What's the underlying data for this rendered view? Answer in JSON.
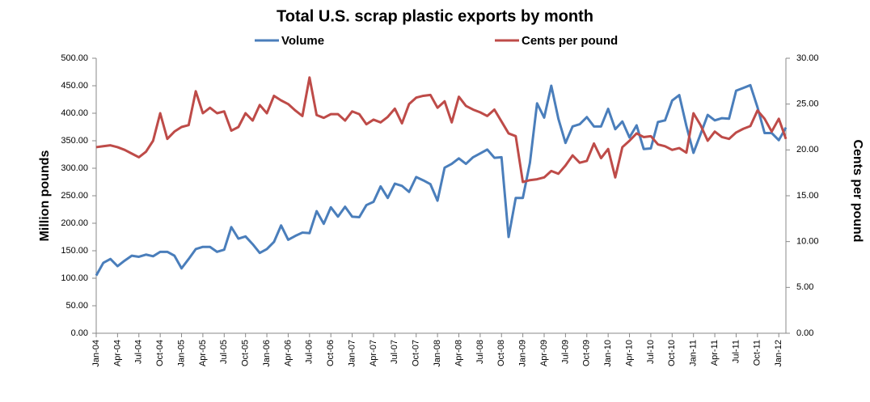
{
  "chart_data": {
    "type": "line",
    "title": "Total U.S. scrap plastic exports by month",
    "y_label": "Million pounds",
    "y2_label": "Cents per pound",
    "categories": [
      "Jan-04",
      null,
      null,
      "Apr-04",
      null,
      null,
      "Jul-04",
      null,
      null,
      "Oct-04",
      null,
      null,
      "Jan-05",
      null,
      null,
      "Apr-05",
      null,
      null,
      "Jul-05",
      null,
      null,
      "Oct-05",
      null,
      null,
      "Jan-06",
      null,
      null,
      "Apr-06",
      null,
      null,
      "Jul-06",
      null,
      null,
      "Oct-06",
      null,
      null,
      "Jan-07",
      null,
      null,
      "Apr-07",
      null,
      null,
      "Jul-07",
      null,
      null,
      "Oct-07",
      null,
      null,
      "Jan-08",
      null,
      null,
      "Apr-08",
      null,
      null,
      "Jul-08",
      null,
      null,
      "Oct-08",
      null,
      null,
      "Jan-09",
      null,
      null,
      "Apr-09",
      null,
      null,
      "Jul-09",
      null,
      null,
      "Oct-09",
      null,
      null,
      "Jan-10",
      null,
      null,
      "Apr-10",
      null,
      null,
      "Jul-10",
      null,
      null,
      "Oct-10",
      null,
      null,
      "Jan-11",
      null,
      null,
      "Apr-11",
      null,
      null,
      "Jul-11",
      null,
      null,
      "Oct-11",
      null,
      null,
      "Jan-12",
      null
    ],
    "series": [
      {
        "name": "Volume",
        "color": "#4a7ebb",
        "values": [
          105,
          128,
          135,
          122,
          132,
          141,
          139,
          143,
          140,
          148,
          148,
          141,
          118,
          135,
          153,
          157,
          157,
          148,
          152,
          193,
          172,
          176,
          162,
          146,
          153,
          166,
          196,
          170,
          177,
          183,
          182,
          222,
          199,
          229,
          212,
          230,
          212,
          211,
          233,
          239,
          267,
          246,
          272,
          268,
          257,
          284,
          278,
          271,
          241,
          301,
          308,
          318,
          308,
          320,
          327,
          334,
          319,
          320,
          175,
          246,
          246,
          310,
          418,
          392,
          450,
          390,
          346,
          376,
          380,
          393,
          376,
          376,
          408,
          371,
          385,
          356,
          378,
          335,
          336,
          384,
          387,
          423,
          433,
          377,
          328,
          362,
          397,
          387,
          391,
          390,
          441,
          446,
          451,
          411,
          364,
          364,
          351,
          374
        ]
      },
      {
        "name": "Cents per pound",
        "color": "#be4b48",
        "axis": "y2",
        "values": [
          20.3,
          20.4,
          20.5,
          20.3,
          20.0,
          19.6,
          19.2,
          19.8,
          21.0,
          24.0,
          21.2,
          22.0,
          22.5,
          22.7,
          26.4,
          24.0,
          24.6,
          24.0,
          24.2,
          22.1,
          22.5,
          24.0,
          23.2,
          24.9,
          24.0,
          25.9,
          25.4,
          25.0,
          24.3,
          23.7,
          27.9,
          23.8,
          23.5,
          23.9,
          23.9,
          23.2,
          24.2,
          23.9,
          22.8,
          23.3,
          23.0,
          23.6,
          24.5,
          22.9,
          25.0,
          25.7,
          25.9,
          26.0,
          24.6,
          25.3,
          23.0,
          25.8,
          24.8,
          24.4,
          24.1,
          23.7,
          24.4,
          23.1,
          21.8,
          21.5,
          16.5,
          16.7,
          16.8,
          17.0,
          17.7,
          17.4,
          18.3,
          19.4,
          18.6,
          18.8,
          20.7,
          19.1,
          20.1,
          17.0,
          20.3,
          21.0,
          21.8,
          21.4,
          21.5,
          20.6,
          20.4,
          20.0,
          20.2,
          19.7,
          24.0,
          22.7,
          21.0,
          22.0,
          21.4,
          21.2,
          21.9,
          22.3,
          22.6,
          24.3,
          23.4,
          22.0,
          23.4,
          21.2
        ]
      }
    ],
    "ylim": [
      0,
      500
    ],
    "yticks": [
      {
        "value": 0,
        "label": "0.00"
      },
      {
        "value": 50,
        "label": "50.00"
      },
      {
        "value": 100,
        "label": "100.00"
      },
      {
        "value": 150,
        "label": "150.00"
      },
      {
        "value": 200,
        "label": "200.00"
      },
      {
        "value": 250,
        "label": "250.00"
      },
      {
        "value": 300,
        "label": "300.00"
      },
      {
        "value": 350,
        "label": "350.00"
      },
      {
        "value": 400,
        "label": "400.00"
      },
      {
        "value": 450,
        "label": "450.00"
      },
      {
        "value": 500,
        "label": "500.00"
      }
    ],
    "y2lim": [
      0,
      30
    ],
    "y2ticks": [
      {
        "value": 0,
        "label": "0.00"
      },
      {
        "value": 5,
        "label": "5.00"
      },
      {
        "value": 10,
        "label": "10.00"
      },
      {
        "value": 15,
        "label": "15.00"
      },
      {
        "value": 20,
        "label": "20.00"
      },
      {
        "value": 25,
        "label": "25.00"
      },
      {
        "value": 30,
        "label": "30.00"
      }
    ],
    "grid": false,
    "legend": "top"
  }
}
